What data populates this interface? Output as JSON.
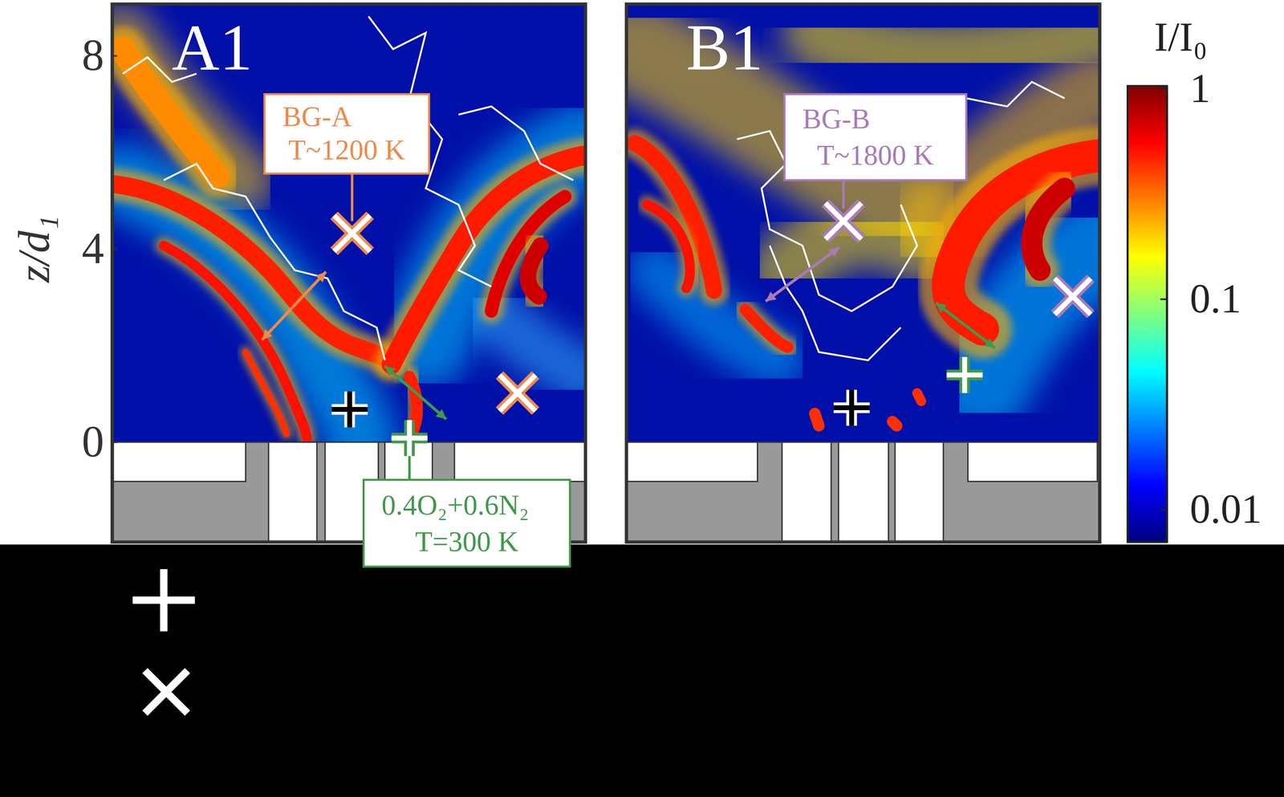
{
  "chart_data": {
    "type": "image",
    "y_label": "z/d₁",
    "ylim": [
      -2.07,
      9.07
    ],
    "yticks": [
      0,
      4,
      8
    ],
    "panels": [
      {
        "label": "A1",
        "annotations": [
          {
            "text": [
              "BG-A",
              "T~1200 K"
            ],
            "color": "#ee8a4b"
          },
          {
            "text": [
              "0.4O₂+0.6N₂",
              "T=300 K"
            ],
            "color": "#3f9a4a"
          }
        ]
      },
      {
        "label": "B1",
        "annotations": [
          {
            "text": [
              "BG-B",
              "T~1800 K"
            ],
            "color": "#a87bb6"
          }
        ]
      }
    ],
    "colorbar": {
      "label": "I/I₀",
      "range": [
        0.007,
        1.03
      ],
      "ticks": [
        0.01,
        0.1,
        1
      ],
      "log": true
    }
  }
}
